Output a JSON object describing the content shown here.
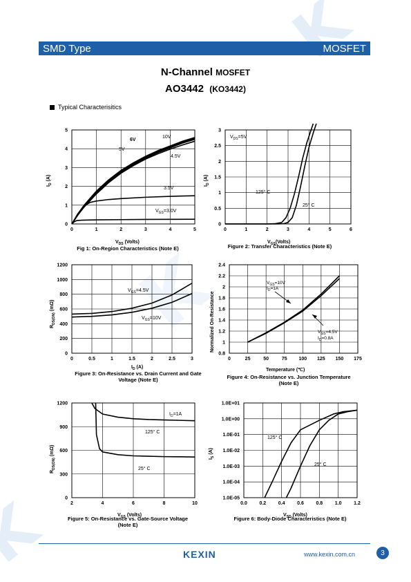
{
  "header": {
    "left": "SMD Type",
    "right": "MOSFET"
  },
  "title": {
    "line1": "N-Channel",
    "line1_small": "MOSFET",
    "part": "AO3442",
    "alt": "(KO3442)"
  },
  "section_heading": "Typical  Characterisitics",
  "footer": {
    "logo": "KEXIN",
    "url": "www.kexin.com.cn",
    "page": "3"
  },
  "colors": {
    "brand": "#1f5fa8",
    "watermark": "#e4eef9"
  },
  "charts": {
    "fig1": {
      "caption": "Fig 1: On-Region Characteristics (Note E)",
      "xlabel_main": "V",
      "xlabel_sub": "DS",
      "xlabel_tail": " (Volts)",
      "ylabel_main": "I",
      "ylabel_sub": "D",
      "ylabel_tail": " (A)",
      "xticks": [
        "0",
        "1",
        "2",
        "3",
        "4",
        "5"
      ],
      "yticks": [
        "0",
        "1",
        "2",
        "3",
        "4",
        "5"
      ],
      "labels": {
        "v10": "10V",
        "v6": "6V",
        "v5": "5V",
        "v45": "4.5V",
        "v35": "3.5V",
        "vgs_main": "V",
        "vgs_sub": "GS",
        "vgs_tail": "=3.0V"
      }
    },
    "fig2": {
      "caption": "Figure 2: Transfer Characteristics (Note E)",
      "xlabel_main": "V",
      "xlabel_sub": "GS",
      "xlabel_tail": "(Volts)",
      "ylabel_main": "I",
      "ylabel_sub": "D",
      "ylabel_tail": " (A)",
      "xticks": [
        "0",
        "1",
        "2",
        "3",
        "4",
        "5",
        "6"
      ],
      "yticks": [
        "0",
        "0.5",
        "1",
        "1.5",
        "2",
        "2.5",
        "3"
      ],
      "labels": {
        "vds_main": "V",
        "vds_sub": "DS",
        "vds_tail": "=5V",
        "t125": "125° C",
        "t25": "25° C"
      }
    },
    "fig3": {
      "caption_line1": "Figure 3: On-Resistance vs. Drain Current and Gate",
      "caption_line2": "Voltage (Note E)",
      "xlabel_main": "I",
      "xlabel_sub": "D",
      "xlabel_tail": " (A)",
      "ylabel_main": "R",
      "ylabel_sub": "DS(ON)",
      "ylabel_tail": " (mΩ)",
      "xticks": [
        "0",
        "0.5",
        "1",
        "1.5",
        "2",
        "2.5",
        "3"
      ],
      "yticks": [
        "0",
        "200",
        "400",
        "600",
        "800",
        "1000",
        "1200"
      ],
      "labels": {
        "vgs45_main": "V",
        "vgs45_sub": "GS",
        "vgs45_tail": "=4.5V",
        "vgs10_main": "V",
        "vgs10_sub": "GS",
        "vgs10_tail": "=10V"
      }
    },
    "fig4": {
      "caption_line1": "Figure 4: On-Resistance vs. Junction Temperature",
      "caption_line2": "(Note E)",
      "xlabel": "Temperature (℃)",
      "ylabel": "Normalized On-Resistance",
      "xticks": [
        "0",
        "25",
        "50",
        "75",
        "100",
        "125",
        "150",
        "175"
      ],
      "yticks": [
        "0.8",
        "1",
        "1.2",
        "1.4",
        "1.6",
        "1.8",
        "2",
        "2.2",
        "2.4"
      ],
      "labels": {
        "a1_main": "V",
        "a1_sub": "GS",
        "a1_tail": "=10V",
        "a2_main": "I",
        "a2_sub": "D",
        "a2_tail": "=1A",
        "b1_main": "V",
        "b1_sub": "GS",
        "b1_tail": "=4.5V",
        "b2_main": "I",
        "b2_sub": "D",
        "b2_tail": "=0.8A"
      }
    },
    "fig5": {
      "caption_line1": "Figure 5: On-Resistance vs. Gate-Source Voltage",
      "caption_line2": "(Note E)",
      "xlabel_main": "V",
      "xlabel_sub": "GS",
      "xlabel_tail": " (Volts)",
      "ylabel_main": "R",
      "ylabel_sub": "DS(ON)",
      "ylabel_tail": " (mΩ)",
      "xticks": [
        "2",
        "4",
        "6",
        "8",
        "10"
      ],
      "yticks": [
        "0",
        "300",
        "600",
        "900",
        "1200"
      ],
      "labels": {
        "id_main": "I",
        "id_sub": "D",
        "id_tail": "=1A",
        "t125": "125° C",
        "t25": "25° C"
      }
    },
    "fig6": {
      "caption": "Figure 6: Body-Diode Characteristics (Note E)",
      "xlabel_main": "V",
      "xlabel_sub": "SD",
      "xlabel_tail": " (Volts)",
      "ylabel_main": "I",
      "ylabel_sub": "S",
      "ylabel_tail": " (A)",
      "xticks": [
        "0.0",
        "0.2",
        "0.4",
        "0.6",
        "0.8",
        "1.0",
        "1.2"
      ],
      "yticks": [
        "1.0E-05",
        "1.0E-04",
        "1.0E-03",
        "1.0E-02",
        "1.0E-01",
        "1.0E+00",
        "1.0E+01"
      ],
      "labels": {
        "t125": "125° C",
        "t25": "25° C"
      }
    }
  },
  "chart_data": [
    {
      "type": "line",
      "title": "Fig 1: On-Region Characteristics (Note E)",
      "xlabel": "VDS (Volts)",
      "ylabel": "ID (A)",
      "xlim": [
        0,
        5
      ],
      "ylim": [
        0,
        5
      ],
      "grid": true,
      "series": [
        {
          "name": "10V",
          "x": [
            0,
            0.25,
            0.5,
            1,
            1.5,
            2,
            2.5,
            3,
            3.5,
            4,
            4.5,
            5
          ],
          "values": [
            0,
            0.55,
            1.0,
            1.75,
            2.35,
            2.85,
            3.25,
            3.6,
            3.9,
            4.15,
            4.4,
            4.6
          ]
        },
        {
          "name": "6V",
          "x": [
            0,
            0.25,
            0.5,
            1,
            1.5,
            2,
            2.5,
            3,
            3.5,
            4,
            4.5,
            5
          ],
          "values": [
            0,
            0.53,
            0.97,
            1.7,
            2.3,
            2.8,
            3.2,
            3.55,
            3.85,
            4.1,
            4.35,
            4.55
          ]
        },
        {
          "name": "5V",
          "x": [
            0,
            0.25,
            0.5,
            1,
            1.5,
            2,
            2.5,
            3,
            3.5,
            4,
            4.5,
            5
          ],
          "values": [
            0,
            0.5,
            0.93,
            1.65,
            2.25,
            2.75,
            3.15,
            3.5,
            3.8,
            4.05,
            4.3,
            4.5
          ]
        },
        {
          "name": "4.5V",
          "x": [
            0,
            0.25,
            0.5,
            1,
            1.5,
            2,
            2.5,
            3,
            3.5,
            4,
            4.5,
            5
          ],
          "values": [
            0,
            0.48,
            0.9,
            1.6,
            2.2,
            2.7,
            3.1,
            3.45,
            3.73,
            3.98,
            4.2,
            4.4
          ]
        },
        {
          "name": "3.5V",
          "x": [
            0,
            0.25,
            0.5,
            0.75,
            1,
            1.5,
            2,
            3,
            4,
            5
          ],
          "values": [
            0,
            0.55,
            0.95,
            1.15,
            1.22,
            1.3,
            1.35,
            1.42,
            1.47,
            1.5
          ]
        },
        {
          "name": "VGS=3.0V",
          "x": [
            0,
            0.1,
            0.2,
            0.4,
            1,
            2,
            3,
            4,
            5
          ],
          "values": [
            0,
            0.12,
            0.18,
            0.2,
            0.22,
            0.23,
            0.24,
            0.245,
            0.25
          ]
        }
      ]
    },
    {
      "type": "line",
      "title": "Figure 2: Transfer Characteristics (Note E)",
      "xlabel": "VGS(Volts)",
      "ylabel": "ID (A)",
      "xlim": [
        0,
        6
      ],
      "ylim": [
        0,
        3
      ],
      "grid": true,
      "series": [
        {
          "name": "125° C",
          "x": [
            0,
            2,
            2.4,
            2.7,
            2.9,
            3.1,
            3.3,
            3.5,
            3.7,
            3.9,
            4.1,
            4.2
          ],
          "values": [
            0,
            0,
            0.01,
            0.05,
            0.2,
            0.5,
            0.95,
            1.5,
            2.1,
            2.6,
            3.0,
            3.2
          ]
        },
        {
          "name": "25° C",
          "x": [
            0,
            2.5,
            2.8,
            3.0,
            3.2,
            3.4,
            3.6,
            3.8,
            4.0,
            4.2,
            4.35
          ],
          "values": [
            0,
            0,
            0.01,
            0.05,
            0.2,
            0.6,
            1.2,
            1.85,
            2.45,
            2.9,
            3.2
          ]
        }
      ]
    },
    {
      "type": "line",
      "title": "Figure 3: On-Resistance vs. Drain Current and Gate Voltage (Note E)",
      "xlabel": "ID (A)",
      "ylabel": "RDS(ON) (mΩ)",
      "xlim": [
        0,
        3
      ],
      "ylim": [
        0,
        1200
      ],
      "grid": true,
      "series": [
        {
          "name": "VGS=4.5V",
          "x": [
            0,
            0.5,
            1,
            1.5,
            2,
            2.5,
            3
          ],
          "values": [
            530,
            540,
            565,
            610,
            680,
            790,
            950
          ]
        },
        {
          "name": "VGS=10V",
          "x": [
            0,
            0.5,
            1,
            1.5,
            2,
            2.5,
            3
          ],
          "values": [
            490,
            500,
            520,
            555,
            610,
            690,
            810
          ]
        }
      ]
    },
    {
      "type": "line",
      "title": "Figure 4: On-Resistance vs. Junction Temperature (Note E)",
      "xlabel": "Temperature (℃)",
      "ylabel": "Normalized On-Resistance",
      "xlim": [
        0,
        175
      ],
      "ylim": [
        0.8,
        2.4
      ],
      "grid": true,
      "series": [
        {
          "name": "VGS=10V, ID=1A",
          "x": [
            25,
            50,
            75,
            100,
            125,
            150
          ],
          "values": [
            1.0,
            1.17,
            1.36,
            1.58,
            1.87,
            2.2
          ]
        },
        {
          "name": "VGS=4.5V, ID=0.8A",
          "x": [
            25,
            50,
            75,
            100,
            125,
            150
          ],
          "values": [
            1.0,
            1.16,
            1.35,
            1.56,
            1.84,
            2.15
          ]
        }
      ]
    },
    {
      "type": "line",
      "title": "Figure 5: On-Resistance vs. Gate-Source Voltage (Note E)",
      "xlabel": "VGS (Volts)",
      "ylabel": "RDS(ON) (mΩ)",
      "xlim": [
        2,
        10
      ],
      "ylim": [
        0,
        1200
      ],
      "grid": true,
      "series": [
        {
          "name": "125° C",
          "x": [
            3.3,
            3.5,
            4,
            5,
            6,
            7,
            8,
            9,
            10
          ],
          "values": [
            1200,
            1130,
            1060,
            1020,
            1000,
            990,
            985,
            980,
            975
          ]
        },
        {
          "name": "25° C",
          "x": [
            3.55,
            3.6,
            3.8,
            4,
            5,
            6,
            7,
            8,
            9,
            10
          ],
          "values": [
            1200,
            800,
            620,
            580,
            545,
            530,
            525,
            520,
            518,
            515
          ]
        }
      ]
    },
    {
      "type": "line",
      "title": "Figure 6: Body-Diode Characteristics (Note E)",
      "xlabel": "VSD (Volts)",
      "ylabel": "IS (A)",
      "xlim": [
        0,
        1.2
      ],
      "ylim": [
        1e-05,
        10
      ],
      "yscale": "log",
      "grid": true,
      "series": [
        {
          "name": "125° C",
          "x": [
            0.22,
            0.3,
            0.4,
            0.5,
            0.6,
            0.8,
            0.95,
            1.05,
            1.2
          ],
          "values": [
            1e-05,
            0.0001,
            0.002,
            0.03,
            0.2,
            0.8,
            2.0,
            2.8,
            3.5
          ]
        },
        {
          "name": "25° C",
          "x": [
            0.45,
            0.5,
            0.6,
            0.7,
            0.8,
            0.9,
            1.0,
            1.1,
            1.2
          ],
          "values": [
            1e-05,
            4e-05,
            0.001,
            0.02,
            0.2,
            0.8,
            2.0,
            2.8,
            3.5
          ]
        }
      ]
    }
  ]
}
